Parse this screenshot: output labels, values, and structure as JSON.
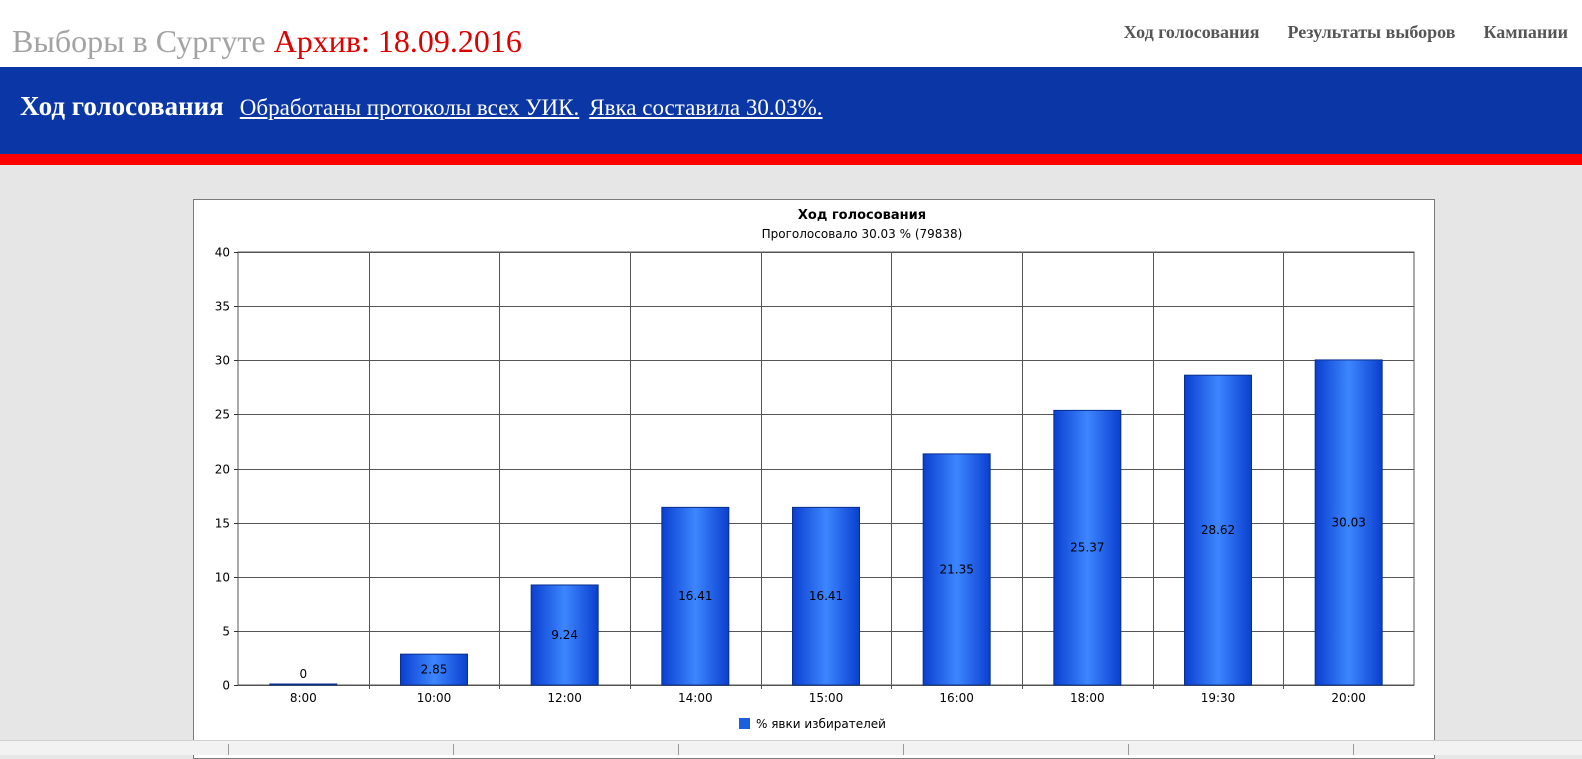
{
  "header": {
    "site_name": "Выборы в Сургуте",
    "archive_label": "Архив: 18.09.2016",
    "nav": [
      "Ход голосования",
      "Результаты выборов",
      "Кампании"
    ]
  },
  "banner": {
    "heading": "Ход голосования",
    "links": [
      "Обработаны протоколы всех УИК.",
      "Явка составила 30.03%."
    ]
  },
  "colors": {
    "brand_blue": "#0b37a6",
    "brand_red": "#ff0000",
    "archive_red": "#dd0000",
    "bar_blue": "#1a5fe0"
  },
  "chart_data": {
    "type": "bar",
    "title": "Ход голосования",
    "subtitle": "Проголосовало 30.03 % (79838)",
    "categories": [
      "8:00",
      "10:00",
      "12:00",
      "14:00",
      "15:00",
      "16:00",
      "18:00",
      "19:30",
      "20:00"
    ],
    "series": [
      {
        "name": "% явки избирателей",
        "values": [
          0,
          2.85,
          9.24,
          16.41,
          16.41,
          21.35,
          25.37,
          28.62,
          30.03
        ]
      }
    ],
    "ylim": [
      0,
      40
    ],
    "yticks": [
      0,
      5,
      10,
      15,
      20,
      25,
      30,
      35,
      40
    ],
    "grid": true,
    "legend": "bottom-center"
  }
}
